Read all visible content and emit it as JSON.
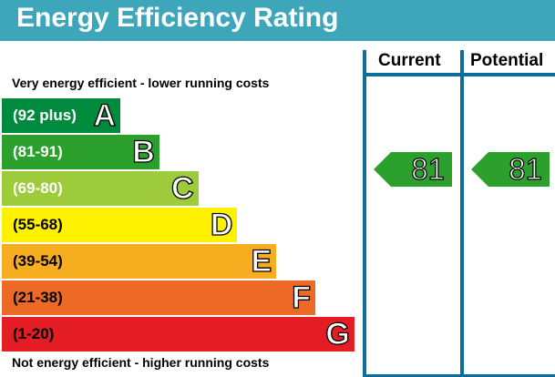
{
  "header": {
    "title": "Energy Efficiency Rating"
  },
  "columns": {
    "current": "Current",
    "potential": "Potential"
  },
  "notes": {
    "top": "Very energy efficient - lower running costs",
    "bottom": "Not energy efficient - higher running costs"
  },
  "chart_data": {
    "type": "bar",
    "title": "Energy Efficiency Rating",
    "bands": [
      {
        "letter": "A",
        "range": "(92 plus)",
        "color": "#008a3e",
        "text_color": "#ffffff"
      },
      {
        "letter": "B",
        "range": "(81-91)",
        "color": "#2ca02c",
        "text_color": "#ffffff"
      },
      {
        "letter": "C",
        "range": "(69-80)",
        "color": "#9dcb3c",
        "text_color": "#ffffff"
      },
      {
        "letter": "D",
        "range": "(55-68)",
        "color": "#fff200",
        "text_color": "#000000"
      },
      {
        "letter": "E",
        "range": "(39-54)",
        "color": "#f6ae20",
        "text_color": "#000000"
      },
      {
        "letter": "F",
        "range": "(21-38)",
        "color": "#ec6a25",
        "text_color": "#000000"
      },
      {
        "letter": "G",
        "range": "(1-20)",
        "color": "#e31d23",
        "text_color": "#000000"
      }
    ],
    "current": {
      "value": "81",
      "band": "B",
      "color": "#2ca02c"
    },
    "potential": {
      "value": "81",
      "band": "B",
      "color": "#2ca02c"
    }
  }
}
